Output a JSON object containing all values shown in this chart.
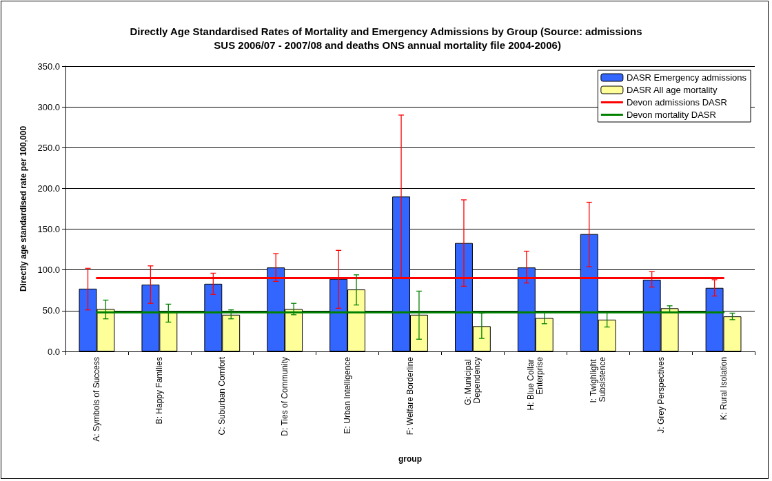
{
  "chart_data": {
    "type": "bar",
    "title": "Directly Age Standardised Rates of Mortality and Emergency Admissions by Group (Source: admissions SUS 2006/07 - 2007/08 and deaths ONS annual mortality file 2004-2006)",
    "xlabel": "group",
    "ylabel": "Directly age standardised rate per 100,000",
    "categories": [
      "A: Symbols of Success",
      "B: Happy Families",
      "C: Suburban Comfort",
      "D: Ties of Community",
      "E: Urban Intelligence",
      "F: Welfare Borderline",
      "G: Municipal Dependency",
      "H: Blue Collar Enterprise",
      "I: Twighlight Subsistence",
      "J: Grey Perspectives",
      "K: Rural Isolation"
    ],
    "series": [
      {
        "name": "DASR Emergency admissions",
        "color": "#3366ff",
        "values": [
          77,
          82,
          83,
          103,
          89,
          190,
          133,
          103,
          144,
          88,
          78
        ],
        "errors": [
          [
            51,
            102
          ],
          [
            59,
            105
          ],
          [
            70,
            96
          ],
          [
            86,
            120
          ],
          [
            53,
            124
          ],
          [
            90,
            290
          ],
          [
            80,
            186
          ],
          [
            84,
            123
          ],
          [
            104,
            183
          ],
          [
            79,
            98
          ],
          [
            68,
            88
          ]
        ]
      },
      {
        "name": "DASR All age mortality",
        "color": "#ffff99",
        "values": [
          52,
          48,
          45,
          52,
          76,
          45,
          31,
          41,
          39,
          53,
          43
        ],
        "errors": [
          [
            40,
            63
          ],
          [
            36,
            58
          ],
          [
            40,
            51
          ],
          [
            45,
            59
          ],
          [
            57,
            94
          ],
          [
            15,
            74
          ],
          [
            16,
            47
          ],
          [
            34,
            48
          ],
          [
            30,
            48
          ],
          [
            48,
            56
          ],
          [
            39,
            47
          ]
        ]
      },
      {
        "name": "Devon admissions DASR",
        "type": "line",
        "color": "#ff0000",
        "values": [
          90,
          90,
          90,
          90,
          90,
          90,
          90,
          90,
          90,
          90,
          90
        ]
      },
      {
        "name": "Devon mortality DASR",
        "type": "line",
        "color": "#008000",
        "values": [
          48,
          48,
          48,
          48,
          48,
          48,
          48,
          48,
          48,
          48,
          48
        ]
      }
    ],
    "ylim": [
      0,
      350
    ],
    "yticks": [
      {
        "value": 0,
        "label": "0.0"
      },
      {
        "value": 50,
        "label": "50.0"
      },
      {
        "value": 100,
        "label": "100.0"
      },
      {
        "value": 150,
        "label": "150.0"
      },
      {
        "value": 200,
        "label": "200.0"
      },
      {
        "value": 250,
        "label": "250.0"
      },
      {
        "value": 300,
        "label": "300.0"
      },
      {
        "value": 350,
        "label": "350.0"
      }
    ],
    "grid": "y",
    "legend": "top right",
    "marker": "none",
    "line_style": "solid"
  }
}
